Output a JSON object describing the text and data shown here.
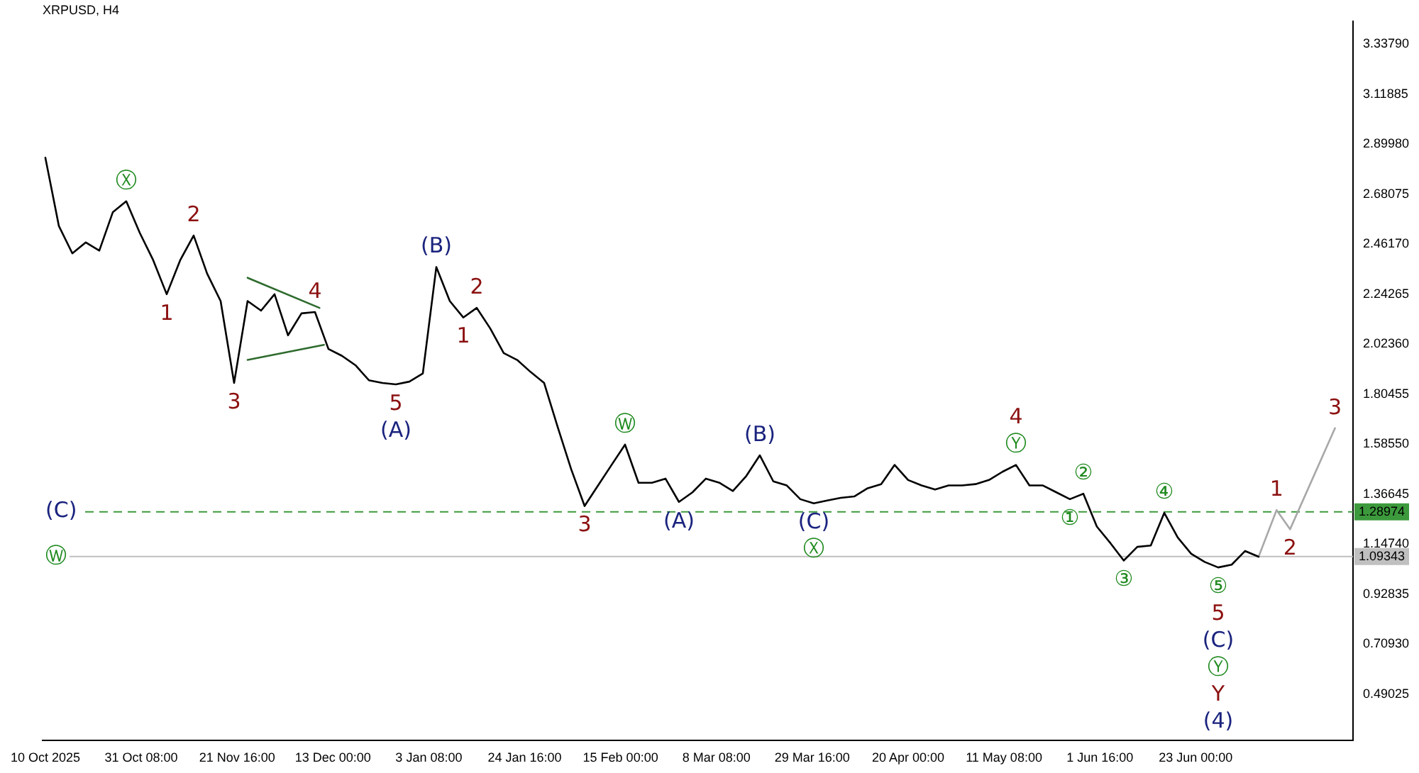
{
  "chart_data": {
    "type": "line",
    "title": "XRPUSD, H4",
    "x": [
      "2025-10-10",
      "2025-10-13",
      "2025-10-16",
      "2025-10-19",
      "2025-10-22",
      "2025-10-25",
      "2025-10-28",
      "2025-10-31",
      "2025-11-03",
      "2025-11-06",
      "2025-11-09",
      "2025-11-12",
      "2025-11-15",
      "2025-11-18",
      "2025-11-21",
      "2025-11-24",
      "2025-11-27",
      "2025-11-30",
      "2025-12-03",
      "2025-12-06",
      "2025-12-09",
      "2025-12-12",
      "2025-12-15",
      "2025-12-18",
      "2025-12-21",
      "2025-12-24",
      "2025-12-27",
      "2025-12-30",
      "2026-01-02",
      "2026-01-05",
      "2026-01-08",
      "2026-01-11",
      "2026-01-14",
      "2026-01-17",
      "2026-01-20",
      "2026-01-23",
      "2026-01-26",
      "2026-01-29",
      "2026-02-01",
      "2026-02-04",
      "2026-02-07",
      "2026-02-10",
      "2026-02-13",
      "2026-02-16",
      "2026-02-19",
      "2026-02-22",
      "2026-02-25",
      "2026-02-28",
      "2026-03-03",
      "2026-03-06",
      "2026-03-09",
      "2026-03-12",
      "2026-03-15",
      "2026-03-18",
      "2026-03-21",
      "2026-03-24",
      "2026-03-27",
      "2026-03-30",
      "2026-04-02",
      "2026-04-05",
      "2026-04-08",
      "2026-04-11",
      "2026-04-14",
      "2026-04-17",
      "2026-04-20",
      "2026-04-23",
      "2026-04-26",
      "2026-04-29",
      "2026-05-02",
      "2026-05-05",
      "2026-05-08",
      "2026-05-11",
      "2026-05-14",
      "2026-05-17",
      "2026-05-20",
      "2026-05-23",
      "2026-05-26",
      "2026-05-29",
      "2026-06-01",
      "2026-06-04",
      "2026-06-07",
      "2026-06-10",
      "2026-06-13",
      "2026-06-16",
      "2026-06-19",
      "2026-06-22",
      "2026-06-25",
      "2026-06-28",
      "2026-07-01",
      "2026-07-04",
      "2026-07-07"
    ],
    "series": [
      {
        "color": "#000000",
        "values": [
          2.841,
          2.542,
          2.422,
          2.47,
          2.434,
          2.602,
          2.65,
          2.512,
          2.392,
          2.243,
          2.392,
          2.5,
          2.333,
          2.213,
          1.854,
          2.213,
          2.171,
          2.243,
          2.063,
          2.159,
          2.165,
          2.003,
          1.973,
          1.932,
          1.866,
          1.854,
          1.848,
          1.86,
          1.896,
          2.362,
          2.213,
          2.141,
          2.183,
          2.093,
          1.985,
          1.955,
          1.902,
          1.854,
          1.662,
          1.477,
          1.315,
          1.405,
          1.495,
          1.584,
          1.417,
          1.417,
          1.435,
          1.333,
          1.375,
          1.435,
          1.417,
          1.381,
          1.447,
          1.537,
          1.423,
          1.405,
          1.345,
          1.327,
          1.339,
          1.351,
          1.357,
          1.393,
          1.411,
          1.495,
          1.429,
          1.405,
          1.387,
          1.405,
          1.405,
          1.411,
          1.429,
          1.465,
          1.495,
          1.405,
          1.405,
          1.375,
          1.345,
          1.369,
          1.225,
          1.153,
          1.076,
          1.136,
          1.142,
          1.285,
          1.177,
          1.106,
          1.07,
          1.046,
          1.058,
          1.118,
          1.093
        ]
      },
      {
        "type": "line",
        "color": "#a8a8a8",
        "x": [
          "2026-07-07",
          "2026-07-11",
          "2026-07-14",
          "2026-07-24"
        ],
        "values": [
          1.093,
          1.297,
          1.213,
          1.656
        ]
      },
      {
        "type": "line",
        "color": "#2e6b2e",
        "x": [
          "2025-11-24",
          "2025-12-10"
        ],
        "values": [
          2.315,
          2.183
        ]
      },
      {
        "type": "line",
        "color": "#2e6b2e",
        "x": [
          "2025-11-24",
          "2025-12-11"
        ],
        "values": [
          1.955,
          2.021
        ]
      }
    ],
    "xlim": [
      "2025-10-09T09:00",
      "2026-07-28"
    ],
    "xticks": [
      {
        "value": "2025-10-10",
        "label": "10 Oct 2025"
      },
      {
        "value": "2025-10-31T08:00",
        "label": "31 Oct 08:00"
      },
      {
        "value": "2025-11-21T16:00",
        "label": "21 Nov 16:00"
      },
      {
        "value": "2025-12-13",
        "label": "13 Dec 00:00"
      },
      {
        "value": "2026-01-03T08:00",
        "label": "3 Jan 08:00"
      },
      {
        "value": "2026-01-24T16:00",
        "label": "24 Jan 16:00"
      },
      {
        "value": "2026-02-15",
        "label": "15 Feb 00:00"
      },
      {
        "value": "2026-03-08T08:00",
        "label": "8 Mar 08:00"
      },
      {
        "value": "2026-03-29T16:00",
        "label": "29 Mar 16:00"
      },
      {
        "value": "2026-04-20",
        "label": "20 Apr 00:00"
      },
      {
        "value": "2026-05-11T08:00",
        "label": "11 May 08:00"
      },
      {
        "value": "2026-06-01T16:00",
        "label": "1 Jun 16:00"
      },
      {
        "value": "2026-06-23",
        "label": "23 Jun 00:00"
      }
    ],
    "ylim": [
      0.287,
      3.44
    ],
    "yticks": [
      0.49025,
      {
        "value": 0.7093,
        "label": "0.70930"
      },
      0.92835,
      {
        "value": 1.1474,
        "label": "1.14740"
      },
      1.36645,
      {
        "value": 1.5855,
        "label": "1.58550"
      },
      1.80455,
      {
        "value": 2.0236,
        "label": "2.02360"
      },
      2.24265,
      {
        "value": 2.4617,
        "label": "2.46170"
      },
      2.68075,
      {
        "value": 2.8998,
        "label": "2.89980"
      },
      3.11885,
      {
        "value": 3.3379,
        "label": "3.33790"
      }
    ],
    "ref_lines": [
      {
        "axis": "y",
        "value": 1.28974,
        "label": "1.28974",
        "color": "#3c9a3c",
        "line_style": "dashed"
      },
      {
        "axis": "y",
        "value": 1.09343,
        "label": "1.09343",
        "color": "#c0c0c0",
        "line_style": "solid"
      }
    ],
    "marker": "none",
    "annotations": [
      {
        "text": "Ⓧ",
        "x": "2025-10-28",
        "y": 2.65
      },
      {
        "text": "2",
        "x": "2025-11-12",
        "y": 2.5
      },
      {
        "text": "1",
        "x": "2025-11-06",
        "y": 2.243
      },
      {
        "text": "3",
        "x": "2025-11-21",
        "y": 1.854
      },
      {
        "text": "4",
        "x": "2025-12-09",
        "y": 2.165
      },
      {
        "text": "5",
        "x": "2025-12-27",
        "y": 1.848
      },
      {
        "text": "(A)",
        "x": "2025-12-27",
        "y": 1.848
      },
      {
        "text": "(B)",
        "x": "2026-01-05",
        "y": 2.362
      },
      {
        "text": "2",
        "x": "2026-01-14",
        "y": 2.183
      },
      {
        "text": "1",
        "x": "2026-01-11",
        "y": 2.141
      },
      {
        "text": "Ⓦ",
        "x": "2026-02-16",
        "y": 1.584
      },
      {
        "text": "3",
        "x": "2026-02-07",
        "y": 1.315
      },
      {
        "text": "(A)",
        "x": "2026-02-28",
        "y": 1.333
      },
      {
        "text": "(B)",
        "x": "2026-03-18",
        "y": 1.537
      },
      {
        "text": "(C)",
        "x": "2026-03-30",
        "y": 1.327
      },
      {
        "text": "Ⓧ",
        "x": "2026-03-30",
        "y": 1.327
      },
      {
        "text": "Ⓨ",
        "x": "2026-05-14",
        "y": 1.495
      },
      {
        "text": "4",
        "x": "2026-05-14",
        "y": 1.495
      },
      {
        "text": "②",
        "x": "2026-05-29",
        "y": 1.369
      },
      {
        "text": "①",
        "x": "2026-05-26",
        "y": 1.345
      },
      {
        "text": "③",
        "x": "2026-06-07",
        "y": 1.076
      },
      {
        "text": "④",
        "x": "2026-06-16",
        "y": 1.285
      },
      {
        "text": "⑤",
        "x": "2026-06-28",
        "y": 1.046
      },
      {
        "text": "5",
        "x": "2026-06-28",
        "y": 1.046
      },
      {
        "text": "(C)",
        "x": "2026-06-28",
        "y": 1.046
      },
      "Ⓨ",
      "Y",
      "(4)",
      {
        "text": "1",
        "x": "2026-07-11",
        "y": 1.297
      },
      {
        "text": "2",
        "x": "2026-07-14",
        "y": 1.213
      },
      {
        "text": "3",
        "x": "2026-07-24",
        "y": 1.656
      },
      {
        "text": "(C)",
        "x": "2025-10-10",
        "y": 1.28974
      },
      {
        "text": "Ⓦ",
        "x": "2025-10-10",
        "y": 1.09343
      }
    ]
  }
}
